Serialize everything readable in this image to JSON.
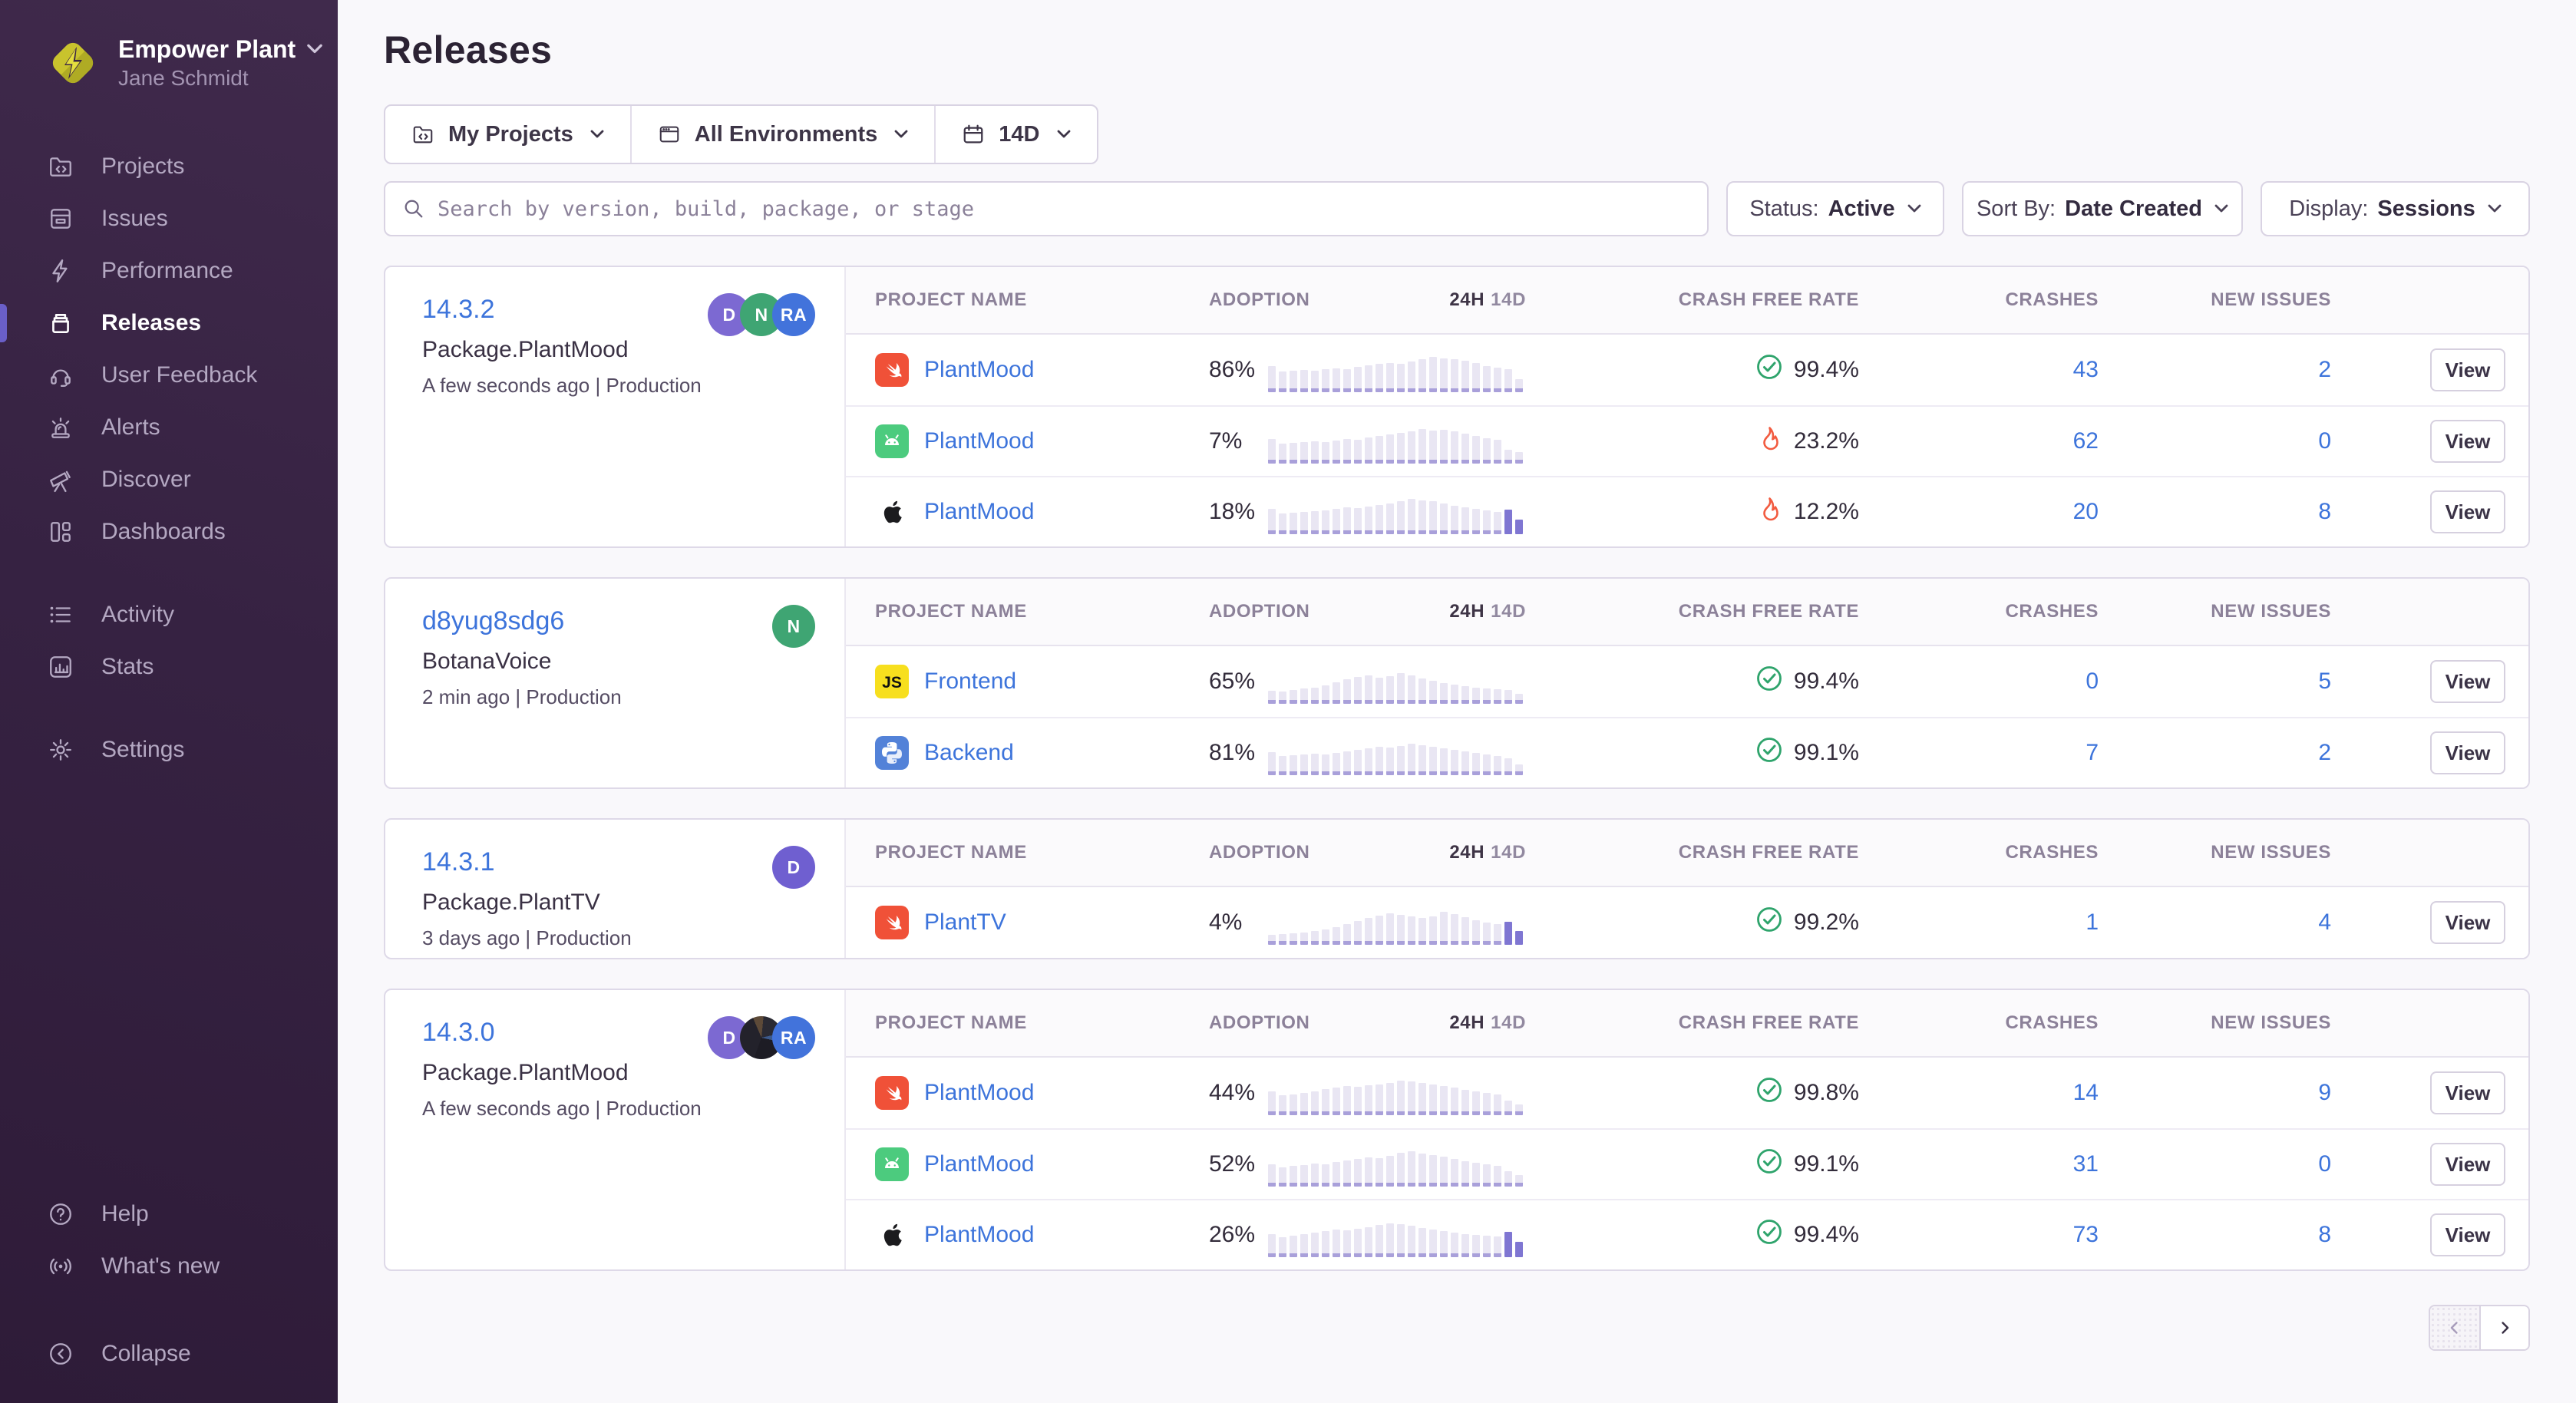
{
  "colors": {
    "accent": "#6A5FC8",
    "link": "#3D74DB",
    "success": "#2FA46C",
    "danger": "#F25B40",
    "sidebar_bg": "#362242"
  },
  "sidebar": {
    "org_name": "Empower Plant",
    "user_name": "Jane Schmidt",
    "items": [
      {
        "label": "Projects"
      },
      {
        "label": "Issues"
      },
      {
        "label": "Performance"
      },
      {
        "label": "Releases"
      },
      {
        "label": "User Feedback"
      },
      {
        "label": "Alerts"
      },
      {
        "label": "Discover"
      },
      {
        "label": "Dashboards"
      },
      {
        "label": "Activity"
      },
      {
        "label": "Stats"
      },
      {
        "label": "Settings"
      }
    ],
    "footer_items": [
      {
        "label": "Help"
      },
      {
        "label": "What's new"
      },
      {
        "label": "Collapse"
      }
    ]
  },
  "header": {
    "title": "Releases"
  },
  "filters": {
    "projects": "My Projects",
    "environments": "All Environments",
    "date_range": "14D"
  },
  "search": {
    "placeholder": "Search by version, build, package, or stage"
  },
  "controls": {
    "status_label": "Status:",
    "status_value": "Active",
    "sort_label": "Sort By:",
    "sort_value": "Date Created",
    "display_label": "Display:",
    "display_value": "Sessions"
  },
  "table": {
    "col_project": "PROJECT NAME",
    "col_adoption": "ADOPTION",
    "col_24h": "24H",
    "col_14d": "14D",
    "col_crash_free": "CRASH FREE RATE",
    "col_crashes": "CRASHES",
    "col_new_issues": "NEW ISSUES",
    "view_label": "View"
  },
  "icons": {
    "js_label": "JS"
  },
  "releases": [
    {
      "version": "14.3.2",
      "package": "Package.PlantMood",
      "meta": "A few seconds ago | Production",
      "avatars": [
        {
          "initials": "D",
          "color": "#7C69D2"
        },
        {
          "initials": "N",
          "color": "#3FA573"
        },
        {
          "initials": "RA",
          "color": "#4273DB"
        }
      ],
      "projects": [
        {
          "platform": "swift",
          "name": "PlantMood",
          "adoption": "86%",
          "crash_free": "99.4%",
          "crash_status": "healthy",
          "crashes": "43",
          "new_issues": "2",
          "bars": [
            0.55,
            0.4,
            0.42,
            0.44,
            0.42,
            0.46,
            0.48,
            0.46,
            0.52,
            0.56,
            0.6,
            0.63,
            0.6,
            0.66,
            0.72,
            0.8,
            0.76,
            0.72,
            0.68,
            0.62,
            0.55,
            0.5,
            0.46,
            0.18
          ],
          "dark_tail": 0
        },
        {
          "platform": "android",
          "name": "PlantMood",
          "adoption": "7%",
          "crash_free": "23.2%",
          "crash_status": "unhealthy",
          "crashes": "62",
          "new_issues": "0",
          "bars": [
            0.5,
            0.38,
            0.4,
            0.42,
            0.44,
            0.42,
            0.46,
            0.5,
            0.48,
            0.54,
            0.58,
            0.62,
            0.66,
            0.7,
            0.78,
            0.72,
            0.74,
            0.7,
            0.64,
            0.58,
            0.52,
            0.48,
            0.2,
            0.14
          ],
          "dark_tail": 0
        },
        {
          "platform": "apple",
          "name": "PlantMood",
          "adoption": "18%",
          "crash_free": "12.2%",
          "crash_status": "unhealthy",
          "crashes": "20",
          "new_issues": "8",
          "bars": [
            0.52,
            0.4,
            0.42,
            0.44,
            0.46,
            0.48,
            0.52,
            0.56,
            0.54,
            0.58,
            0.62,
            0.66,
            0.72,
            0.8,
            0.76,
            0.72,
            0.66,
            0.6,
            0.56,
            0.52,
            0.48,
            0.44,
            0.5,
            0.22
          ],
          "dark_tail": 2
        }
      ]
    },
    {
      "version": "d8yug8sdg6",
      "package": "BotanaVoice",
      "meta": "2 min ago | Production",
      "avatars": [
        {
          "initials": "N",
          "color": "#3FA573"
        }
      ],
      "projects": [
        {
          "platform": "js",
          "name": "Frontend",
          "adoption": "65%",
          "crash_free": "99.4%",
          "crash_status": "healthy",
          "crashes": "0",
          "new_issues": "5",
          "bars": [
            0.18,
            0.16,
            0.2,
            0.24,
            0.28,
            0.34,
            0.42,
            0.5,
            0.56,
            0.6,
            0.55,
            0.58,
            0.66,
            0.6,
            0.52,
            0.46,
            0.4,
            0.36,
            0.32,
            0.28,
            0.24,
            0.22,
            0.2,
            0.1
          ],
          "dark_tail": 0
        },
        {
          "platform": "python",
          "name": "Backend",
          "adoption": "81%",
          "crash_free": "99.1%",
          "crash_status": "healthy",
          "crashes": "7",
          "new_issues": "2",
          "bars": [
            0.45,
            0.35,
            0.38,
            0.4,
            0.42,
            0.4,
            0.44,
            0.48,
            0.52,
            0.56,
            0.6,
            0.58,
            0.62,
            0.68,
            0.64,
            0.6,
            0.56,
            0.52,
            0.48,
            0.44,
            0.4,
            0.36,
            0.3,
            0.12
          ],
          "dark_tail": 0
        }
      ]
    },
    {
      "version": "14.3.1",
      "package": "Package.PlantTV",
      "meta": "3 days ago | Production",
      "avatars": [
        {
          "initials": "D",
          "color": "#6F5FD0"
        }
      ],
      "projects": [
        {
          "platform": "swift",
          "name": "PlantTV",
          "adoption": "4%",
          "crash_free": "99.2%",
          "crash_status": "healthy",
          "crashes": "1",
          "new_issues": "4",
          "bars": [
            0.1,
            0.12,
            0.14,
            0.16,
            0.2,
            0.26,
            0.32,
            0.4,
            0.48,
            0.56,
            0.62,
            0.68,
            0.64,
            0.6,
            0.56,
            0.6,
            0.72,
            0.66,
            0.58,
            0.5,
            0.44,
            0.4,
            0.46,
            0.2
          ],
          "dark_tail": 2
        }
      ]
    },
    {
      "version": "14.3.0",
      "package": "Package.PlantMood",
      "meta": "A few seconds ago | Production",
      "avatars": [
        {
          "initials": "D",
          "color": "#7C69D2"
        },
        {
          "initials": "",
          "color": "photo"
        },
        {
          "initials": "RA",
          "color": "#4273DB"
        }
      ],
      "projects": [
        {
          "platform": "swift",
          "name": "PlantMood",
          "adoption": "44%",
          "crash_free": "99.8%",
          "crash_status": "healthy",
          "crashes": "14",
          "new_issues": "9",
          "bars": [
            0.48,
            0.38,
            0.4,
            0.44,
            0.48,
            0.54,
            0.58,
            0.62,
            0.6,
            0.64,
            0.66,
            0.7,
            0.78,
            0.74,
            0.7,
            0.66,
            0.62,
            0.58,
            0.52,
            0.48,
            0.44,
            0.4,
            0.22,
            0.12
          ],
          "dark_tail": 0
        },
        {
          "platform": "android",
          "name": "PlantMood",
          "adoption": "52%",
          "crash_free": "99.1%",
          "crash_status": "healthy",
          "crashes": "31",
          "new_issues": "0",
          "bars": [
            0.44,
            0.36,
            0.4,
            0.42,
            0.46,
            0.44,
            0.5,
            0.54,
            0.58,
            0.62,
            0.6,
            0.66,
            0.74,
            0.8,
            0.72,
            0.68,
            0.64,
            0.58,
            0.52,
            0.48,
            0.44,
            0.4,
            0.24,
            0.14
          ],
          "dark_tail": 0
        },
        {
          "platform": "apple",
          "name": "PlantMood",
          "adoption": "26%",
          "crash_free": "99.4%",
          "crash_status": "healthy",
          "crashes": "73",
          "new_issues": "8",
          "bars": [
            0.46,
            0.38,
            0.42,
            0.46,
            0.5,
            0.54,
            0.58,
            0.56,
            0.6,
            0.64,
            0.7,
            0.76,
            0.72,
            0.68,
            0.62,
            0.58,
            0.54,
            0.5,
            0.46,
            0.44,
            0.42,
            0.4,
            0.52,
            0.24
          ],
          "dark_tail": 2
        }
      ]
    }
  ]
}
